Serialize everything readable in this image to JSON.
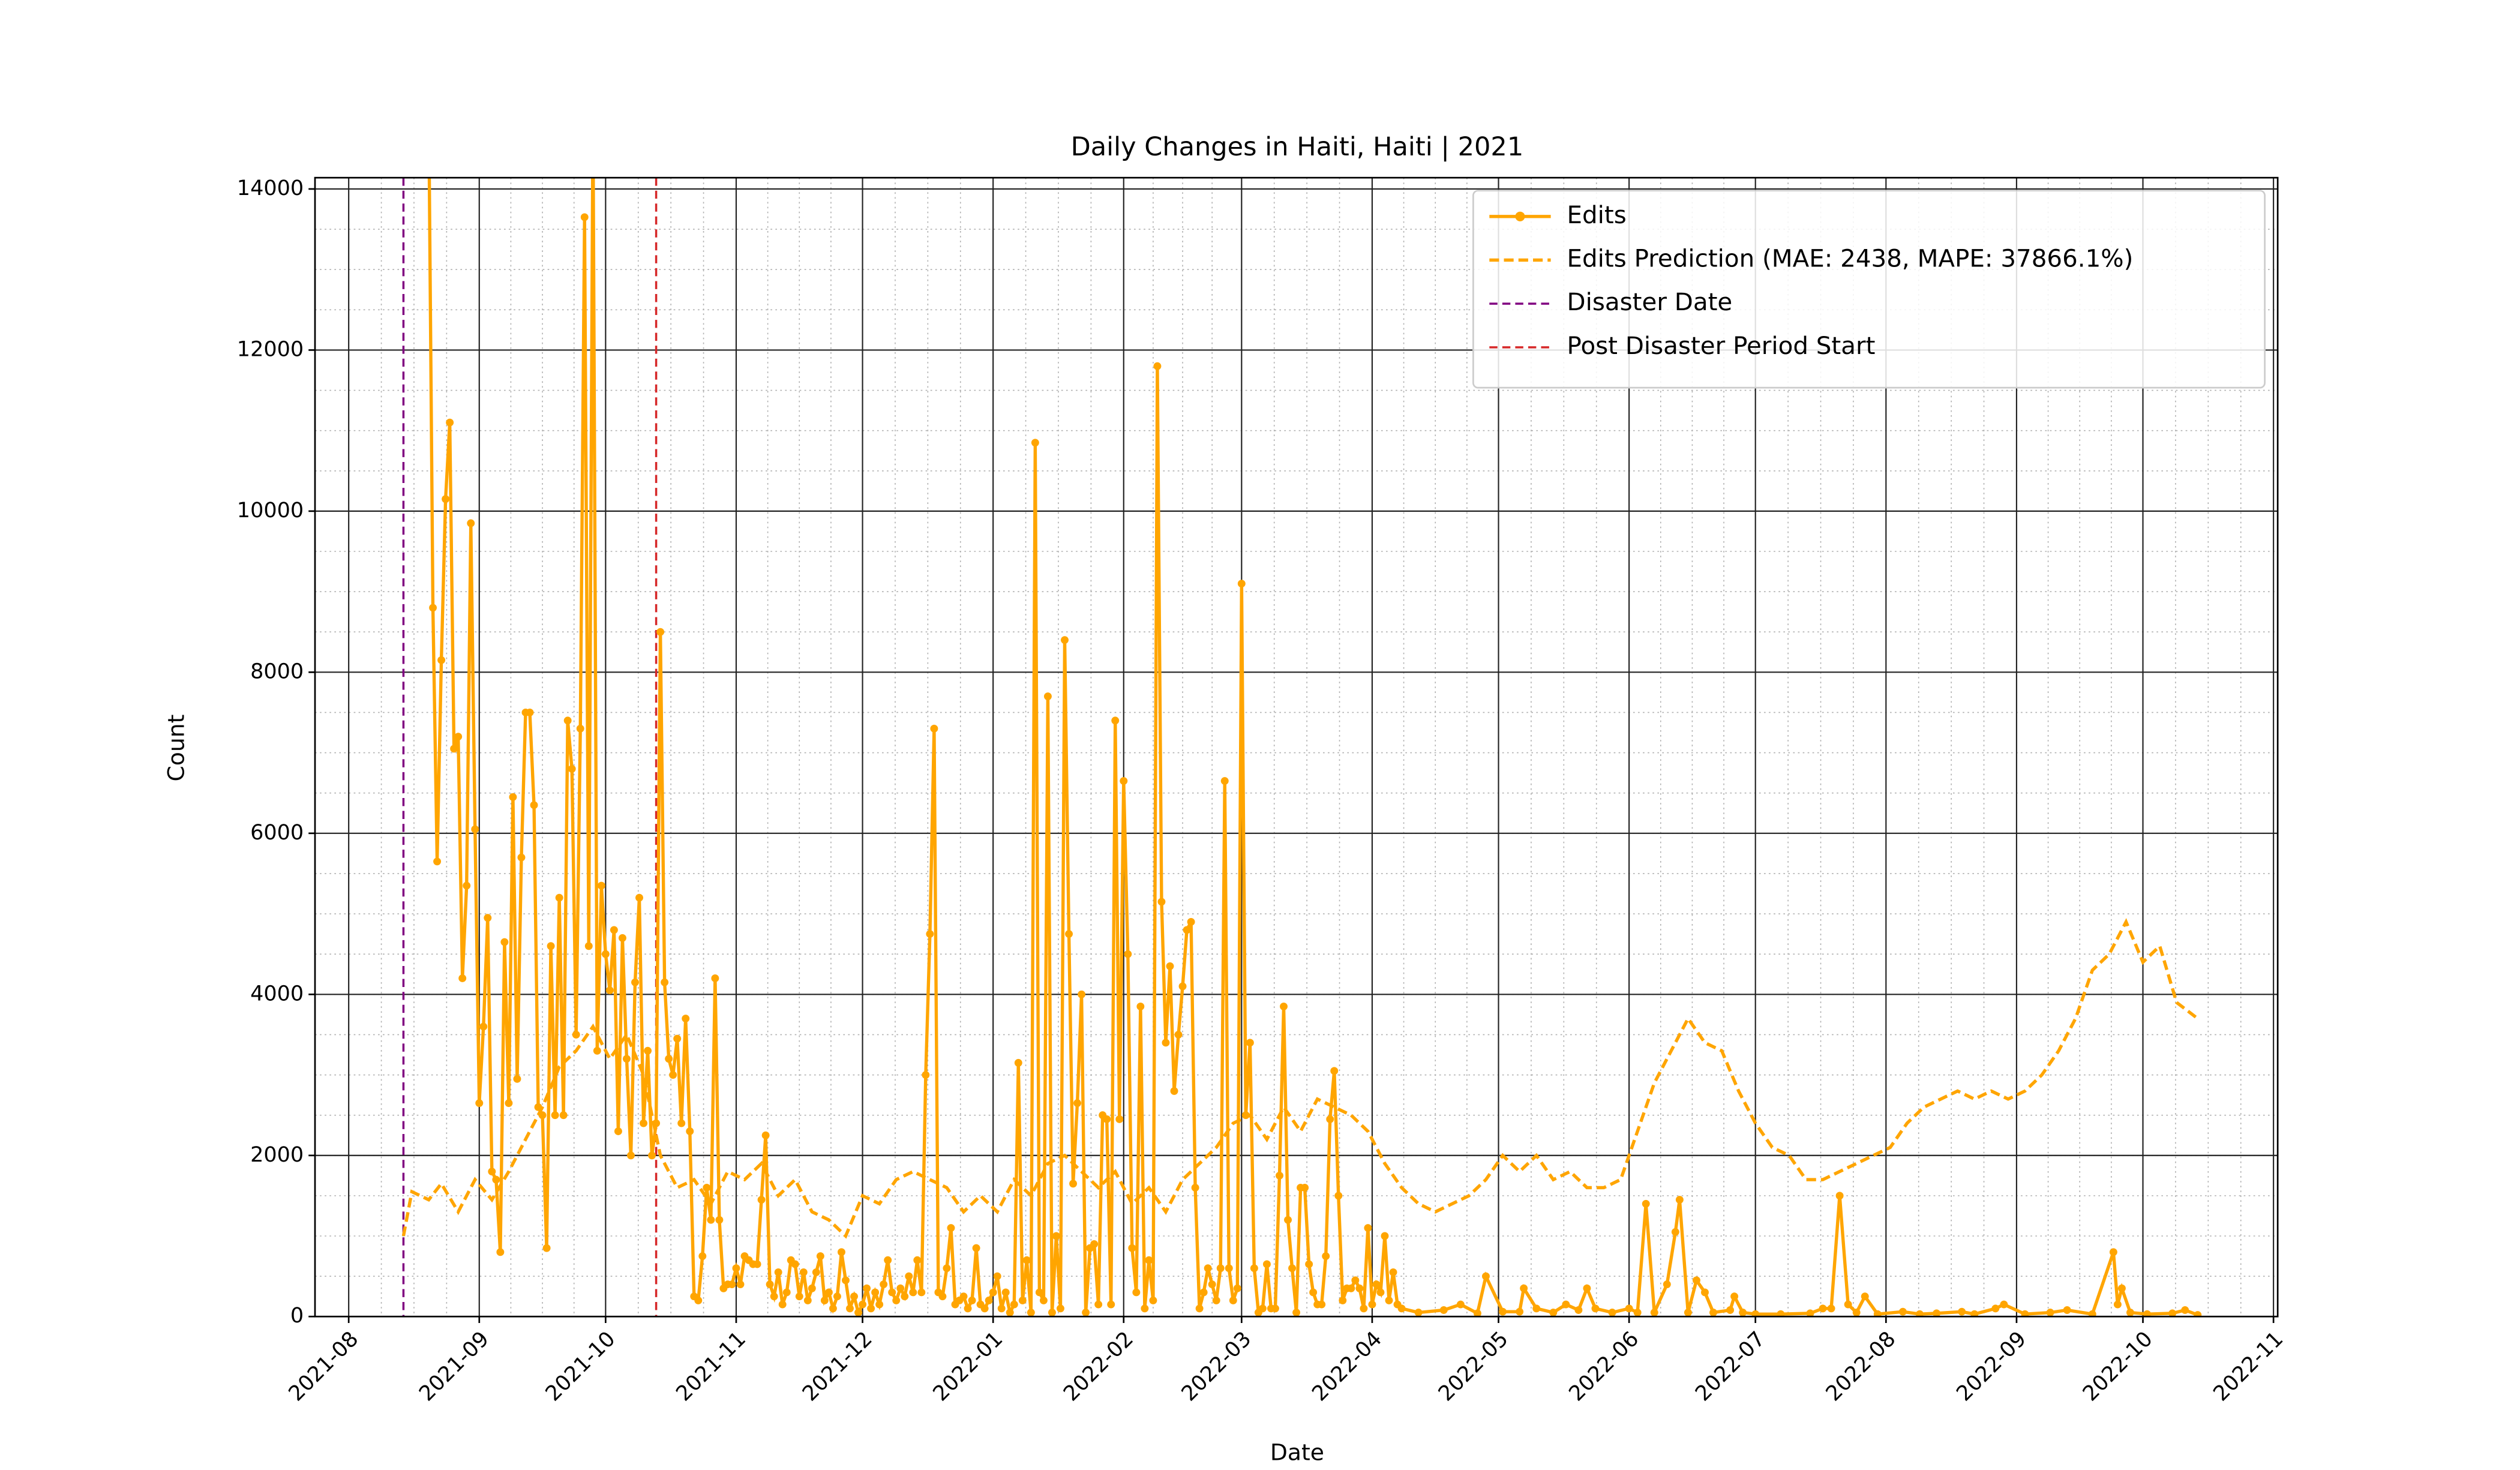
{
  "chart_data": {
    "type": "line",
    "title": "Daily Changes in Haiti, Haiti | 2021",
    "xlabel": "Date",
    "ylabel": "Count",
    "xlim": [
      "2021-07-24",
      "2022-11-02"
    ],
    "ylim": [
      0,
      14140
    ],
    "xticks": [
      "2021-08",
      "2021-09",
      "2021-10",
      "2021-11",
      "2021-12",
      "2022-01",
      "2022-02",
      "2022-03",
      "2022-04",
      "2022-05",
      "2022-06",
      "2022-07",
      "2022-08",
      "2022-09",
      "2022-10",
      "2022-11"
    ],
    "yticks": [
      0,
      2000,
      4000,
      6000,
      8000,
      10000,
      12000,
      14000
    ],
    "grid": true,
    "minor_grid": true,
    "legend": "upper right",
    "series": [
      {
        "name": "Edits",
        "color": "#ffa500",
        "marker": true,
        "dash": false,
        "x": [
          "2021-08-20",
          "2021-08-21",
          "2021-08-22",
          "2021-08-23",
          "2021-08-24",
          "2021-08-25",
          "2021-08-26",
          "2021-08-27",
          "2021-08-28",
          "2021-08-29",
          "2021-08-30",
          "2021-08-31",
          "2021-09-01",
          "2021-09-02",
          "2021-09-03",
          "2021-09-04",
          "2021-09-05",
          "2021-09-06",
          "2021-09-07",
          "2021-09-08",
          "2021-09-09",
          "2021-09-10",
          "2021-09-11",
          "2021-09-12",
          "2021-09-13",
          "2021-09-14",
          "2021-09-15",
          "2021-09-16",
          "2021-09-17",
          "2021-09-18",
          "2021-09-19",
          "2021-09-20",
          "2021-09-21",
          "2021-09-22",
          "2021-09-23",
          "2021-09-24",
          "2021-09-25",
          "2021-09-26",
          "2021-09-27",
          "2021-09-28",
          "2021-09-29",
          "2021-09-30",
          "2021-10-01",
          "2021-10-02",
          "2021-10-03",
          "2021-10-04",
          "2021-10-05",
          "2021-10-06",
          "2021-10-07",
          "2021-10-08",
          "2021-10-09",
          "2021-10-10",
          "2021-10-11",
          "2021-10-12",
          "2021-10-13",
          "2021-10-14",
          "2021-10-15",
          "2021-10-16",
          "2021-10-17",
          "2021-10-18",
          "2021-10-19",
          "2021-10-20",
          "2021-10-21",
          "2021-10-22",
          "2021-10-23",
          "2021-10-24",
          "2021-10-25",
          "2021-10-26",
          "2021-10-27",
          "2021-10-28",
          "2021-10-29",
          "2021-10-30",
          "2021-10-31",
          "2021-11-01",
          "2021-11-02",
          "2021-11-03",
          "2021-11-04",
          "2021-11-05",
          "2021-11-06",
          "2021-11-07",
          "2021-11-08",
          "2021-11-09",
          "2021-11-10",
          "2021-11-11",
          "2021-11-12",
          "2021-11-13",
          "2021-11-14",
          "2021-11-15",
          "2021-11-16",
          "2021-11-17",
          "2021-11-18",
          "2021-11-19",
          "2021-11-20",
          "2021-11-21",
          "2021-11-22",
          "2021-11-23",
          "2021-11-24",
          "2021-11-25",
          "2021-11-26",
          "2021-11-27",
          "2021-11-28",
          "2021-11-29",
          "2021-11-30",
          "2021-12-01",
          "2021-12-02",
          "2021-12-03",
          "2021-12-04",
          "2021-12-05",
          "2021-12-06",
          "2021-12-07",
          "2021-12-08",
          "2021-12-09",
          "2021-12-10",
          "2021-12-11",
          "2021-12-12",
          "2021-12-13",
          "2021-12-14",
          "2021-12-15",
          "2021-12-16",
          "2021-12-17",
          "2021-12-18",
          "2021-12-19",
          "2021-12-20",
          "2021-12-21",
          "2021-12-22",
          "2021-12-23",
          "2021-12-24",
          "2021-12-25",
          "2021-12-26",
          "2021-12-27",
          "2021-12-28",
          "2021-12-29",
          "2021-12-30",
          "2021-12-31",
          "2022-01-01",
          "2022-01-02",
          "2022-01-03",
          "2022-01-04",
          "2022-01-05",
          "2022-01-06",
          "2022-01-07",
          "2022-01-08",
          "2022-01-09",
          "2022-01-10",
          "2022-01-11",
          "2022-01-12",
          "2022-01-13",
          "2022-01-14",
          "2022-01-15",
          "2022-01-16",
          "2022-01-17",
          "2022-01-18",
          "2022-01-19",
          "2022-01-20",
          "2022-01-21",
          "2022-01-22",
          "2022-01-23",
          "2022-01-24",
          "2022-01-25",
          "2022-01-26",
          "2022-01-27",
          "2022-01-28",
          "2022-01-29",
          "2022-01-30",
          "2022-01-31",
          "2022-02-01",
          "2022-02-02",
          "2022-02-03",
          "2022-02-04",
          "2022-02-05",
          "2022-02-06",
          "2022-02-07",
          "2022-02-08",
          "2022-02-09",
          "2022-02-10",
          "2022-02-11",
          "2022-02-12",
          "2022-02-13",
          "2022-02-14",
          "2022-02-15",
          "2022-02-16",
          "2022-02-17",
          "2022-02-18",
          "2022-02-19",
          "2022-02-20",
          "2022-02-21",
          "2022-02-22",
          "2022-02-23",
          "2022-02-24",
          "2022-02-25",
          "2022-02-26",
          "2022-02-27",
          "2022-02-28",
          "2022-03-01",
          "2022-03-02",
          "2022-03-03",
          "2022-03-04",
          "2022-03-05",
          "2022-03-06",
          "2022-03-07",
          "2022-03-08",
          "2022-03-09",
          "2022-03-10",
          "2022-03-11",
          "2022-03-12",
          "2022-03-13",
          "2022-03-14",
          "2022-03-15",
          "2022-03-16",
          "2022-03-17",
          "2022-03-18",
          "2022-03-19",
          "2022-03-20",
          "2022-03-21",
          "2022-03-22",
          "2022-03-23",
          "2022-03-24",
          "2022-03-25",
          "2022-03-26",
          "2022-03-27",
          "2022-03-28",
          "2022-03-29",
          "2022-03-30",
          "2022-03-31",
          "2022-04-01",
          "2022-04-02",
          "2022-04-03",
          "2022-04-04",
          "2022-04-05",
          "2022-04-06",
          "2022-04-07",
          "2022-04-08",
          "2022-04-12",
          "2022-04-18",
          "2022-04-22",
          "2022-04-26",
          "2022-04-28",
          "2022-05-02",
          "2022-05-06",
          "2022-05-07",
          "2022-05-10",
          "2022-05-14",
          "2022-05-17",
          "2022-05-20",
          "2022-05-22",
          "2022-05-24",
          "2022-05-28",
          "2022-06-01",
          "2022-06-03",
          "2022-06-05",
          "2022-06-07",
          "2022-06-10",
          "2022-06-12",
          "2022-06-13",
          "2022-06-15",
          "2022-06-17",
          "2022-06-19",
          "2022-06-21",
          "2022-06-25",
          "2022-06-26",
          "2022-06-28",
          "2022-07-01",
          "2022-07-07",
          "2022-07-14",
          "2022-07-17",
          "2022-07-19",
          "2022-07-21",
          "2022-07-23",
          "2022-07-25",
          "2022-07-27",
          "2022-07-30",
          "2022-08-05",
          "2022-08-09",
          "2022-08-13",
          "2022-08-19",
          "2022-08-22",
          "2022-08-27",
          "2022-08-29",
          "2022-09-03",
          "2022-09-09",
          "2022-09-13",
          "2022-09-19",
          "2022-09-24",
          "2022-09-25",
          "2022-09-26",
          "2022-09-28",
          "2022-10-02",
          "2022-10-08",
          "2022-10-11",
          "2022-10-14"
        ],
        "values": [
          15000,
          8800,
          5650,
          8150,
          10150,
          11100,
          7050,
          7200,
          4200,
          5350,
          9850,
          6050,
          2650,
          3600,
          4950,
          1800,
          1700,
          800,
          4650,
          2650,
          6450,
          2950,
          5700,
          7500,
          7500,
          6350,
          2600,
          2500,
          850,
          4600,
          2500,
          5200,
          2500,
          7400,
          6800,
          3500,
          7300,
          13650,
          4600,
          15000,
          3300,
          5350,
          4500,
          4050,
          4800,
          2300,
          4700,
          3200,
          2000,
          4150,
          5200,
          2400,
          3300,
          2000,
          2400,
          8500,
          4150,
          3200,
          3000,
          3450,
          2400,
          3700,
          2300,
          250,
          200,
          750,
          1600,
          1200,
          4200,
          1200,
          350,
          400,
          400,
          600,
          400,
          750,
          700,
          650,
          650,
          1450,
          2250,
          400,
          250,
          550,
          150,
          300,
          700,
          650,
          250,
          550,
          200,
          350,
          550,
          750,
          200,
          300,
          100,
          250,
          800,
          450,
          100,
          250,
          50,
          150,
          350,
          100,
          300,
          150,
          400,
          700,
          300,
          200,
          350,
          250,
          500,
          300,
          700,
          300,
          3000,
          4750,
          7300,
          300,
          250,
          600,
          1100,
          150,
          200,
          250,
          100,
          200,
          850,
          150,
          100,
          200,
          300,
          500,
          100,
          300,
          50,
          150,
          3150,
          200,
          700,
          50,
          10850,
          300,
          200,
          7700,
          50,
          1000,
          100,
          8400,
          4750,
          1650,
          2650,
          4000,
          50,
          850,
          900,
          150,
          2500,
          2450,
          150,
          7400,
          2450,
          6650,
          4500,
          850,
          300,
          3850,
          100,
          700,
          200,
          11800,
          5150,
          3400,
          4350,
          2800,
          3500,
          4100,
          4800,
          4900,
          1600,
          100,
          300,
          600,
          400,
          200,
          600,
          6650,
          600,
          200,
          350,
          9100,
          2500,
          3400,
          600,
          50,
          100,
          650,
          100,
          100,
          1750,
          3850,
          1200,
          600,
          50,
          1600,
          1600,
          650,
          300,
          150,
          150,
          750,
          2450,
          3050,
          1500,
          200,
          350,
          350,
          450,
          350,
          100,
          1100,
          150,
          400,
          300,
          1000,
          200,
          550,
          150,
          100,
          50,
          80,
          150,
          40,
          500,
          60,
          60,
          350,
          100,
          50,
          150,
          80,
          350,
          100,
          50,
          100,
          50,
          1400,
          50,
          400,
          1050,
          1450,
          50,
          450,
          300,
          50,
          80,
          250,
          50,
          30,
          30,
          40,
          100,
          100,
          1500,
          150,
          50,
          250,
          30,
          60,
          30,
          40,
          60,
          30,
          100,
          150,
          30,
          50,
          80,
          30,
          800,
          150,
          350,
          50,
          30,
          40,
          80,
          20
        ]
      },
      {
        "name": "Edits Prediction (MAE: 2438, MAPE: 37866.1%)",
        "color": "#ffa500",
        "marker": false,
        "dash": true,
        "x": [
          "2021-08-14",
          "2021-08-16",
          "2021-08-20",
          "2021-08-23",
          "2021-08-27",
          "2021-08-31",
          "2021-09-04",
          "2021-09-08",
          "2021-09-12",
          "2021-09-16",
          "2021-09-20",
          "2021-09-24",
          "2021-09-28",
          "2021-10-02",
          "2021-10-06",
          "2021-10-10",
          "2021-10-14",
          "2021-10-18",
          "2021-10-22",
          "2021-10-26",
          "2021-10-30",
          "2021-11-03",
          "2021-11-07",
          "2021-11-11",
          "2021-11-15",
          "2021-11-19",
          "2021-11-23",
          "2021-11-27",
          "2021-12-01",
          "2021-12-05",
          "2021-12-09",
          "2021-12-13",
          "2021-12-17",
          "2021-12-21",
          "2021-12-25",
          "2021-12-29",
          "2022-01-02",
          "2022-01-06",
          "2022-01-10",
          "2022-01-14",
          "2022-01-18",
          "2022-01-22",
          "2022-01-26",
          "2022-01-30",
          "2022-02-03",
          "2022-02-07",
          "2022-02-11",
          "2022-02-15",
          "2022-02-19",
          "2022-02-23",
          "2022-02-27",
          "2022-03-03",
          "2022-03-07",
          "2022-03-11",
          "2022-03-15",
          "2022-03-19",
          "2022-03-23",
          "2022-03-27",
          "2022-03-31",
          "2022-04-04",
          "2022-04-08",
          "2022-04-12",
          "2022-04-16",
          "2022-04-20",
          "2022-04-24",
          "2022-04-28",
          "2022-05-02",
          "2022-05-06",
          "2022-05-10",
          "2022-05-14",
          "2022-05-18",
          "2022-05-22",
          "2022-05-26",
          "2022-05-30",
          "2022-06-03",
          "2022-06-07",
          "2022-06-11",
          "2022-06-15",
          "2022-06-19",
          "2022-06-23",
          "2022-06-27",
          "2022-07-01",
          "2022-07-05",
          "2022-07-09",
          "2022-07-13",
          "2022-07-17",
          "2022-07-21",
          "2022-07-25",
          "2022-07-29",
          "2022-08-02",
          "2022-08-06",
          "2022-08-10",
          "2022-08-14",
          "2022-08-18",
          "2022-08-22",
          "2022-08-26",
          "2022-08-30",
          "2022-09-03",
          "2022-09-07",
          "2022-09-11",
          "2022-09-15",
          "2022-09-19",
          "2022-09-23",
          "2022-09-27",
          "2022-10-01",
          "2022-10-05",
          "2022-10-09",
          "2022-10-14"
        ],
        "values": [
          1000,
          1550,
          1450,
          1650,
          1300,
          1700,
          1450,
          1800,
          2200,
          2600,
          3100,
          3300,
          3600,
          3200,
          3500,
          3000,
          2000,
          1600,
          1700,
          1400,
          1800,
          1700,
          1900,
          1500,
          1700,
          1300,
          1200,
          1000,
          1500,
          1400,
          1700,
          1800,
          1700,
          1600,
          1300,
          1500,
          1300,
          1700,
          1500,
          1900,
          2000,
          1800,
          1600,
          1800,
          1400,
          1600,
          1300,
          1700,
          1900,
          2100,
          2400,
          2500,
          2200,
          2600,
          2300,
          2700,
          2600,
          2500,
          2300,
          1900,
          1600,
          1400,
          1300,
          1400,
          1500,
          1700,
          2000,
          1800,
          2000,
          1700,
          1800,
          1600,
          1600,
          1700,
          2300,
          2900,
          3300,
          3700,
          3400,
          3300,
          2800,
          2400,
          2100,
          2000,
          1700,
          1700,
          1800,
          1900,
          2000,
          2100,
          2400,
          2600,
          2700,
          2800,
          2700,
          2800,
          2700,
          2800,
          3000,
          3300,
          3700,
          4300,
          4500,
          4900,
          4400,
          4600,
          3900,
          3700
        ]
      }
    ],
    "vlines": [
      {
        "name": "Disaster Date",
        "x": "2021-08-14",
        "color": "#800080"
      },
      {
        "name": "Post Disaster Period Start",
        "x": "2021-10-13",
        "color": "#d62728"
      }
    ]
  }
}
